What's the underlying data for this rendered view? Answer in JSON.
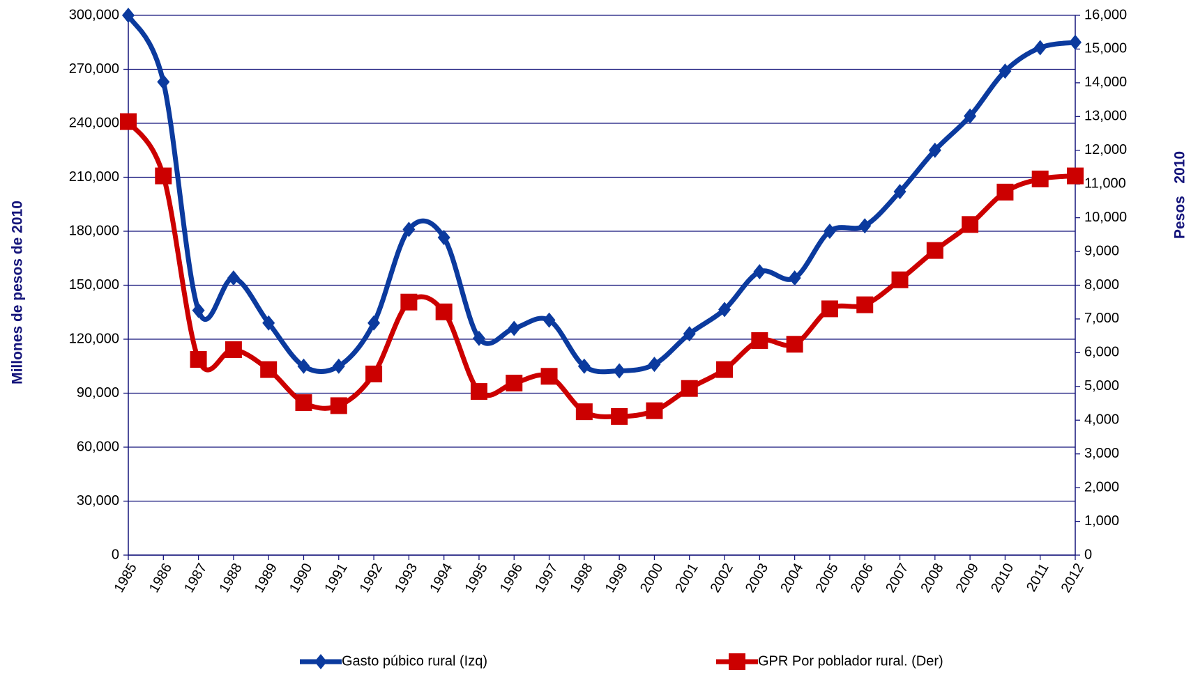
{
  "chart_data": {
    "type": "line",
    "categories": [
      "1985",
      "1986",
      "1987",
      "1988",
      "1989",
      "1990",
      "1991",
      "1992",
      "1993",
      "1994",
      "1995",
      "1996",
      "1997",
      "1998",
      "1999",
      "2000",
      "2001",
      "2002",
      "2003",
      "2004",
      "2005",
      "2006",
      "2007",
      "2008",
      "2009",
      "2010",
      "2011",
      "2012"
    ],
    "y_label": "Millones de pesos de 2010",
    "y2_label": "Pesos   2010",
    "ylim": [
      0,
      300000
    ],
    "yticks": [
      0,
      {
        "value": 30000,
        "label": "30,000"
      },
      {
        "value": 60000,
        "label": "60,000"
      },
      {
        "value": 90000,
        "label": "90,000"
      },
      {
        "value": 120000,
        "label": "120,000"
      },
      {
        "value": 150000,
        "label": "150,000"
      },
      {
        "value": 180000,
        "label": "180,000"
      },
      {
        "value": 210000,
        "label": "210,000"
      },
      {
        "value": 240000,
        "label": "240,000"
      },
      {
        "value": 270000,
        "label": "270,000"
      },
      {
        "value": 300000,
        "label": "300,000"
      }
    ],
    "y2lim": [
      0,
      16000
    ],
    "y2ticks": [
      0,
      {
        "value": 1000,
        "label": "1,000"
      },
      {
        "value": 2000,
        "label": "2,000"
      },
      {
        "value": 3000,
        "label": "3,000"
      },
      {
        "value": 4000,
        "label": "4,000"
      },
      {
        "value": 5000,
        "label": "5,000"
      },
      {
        "value": 6000,
        "label": "6,000"
      },
      {
        "value": 7000,
        "label": "7,000"
      },
      {
        "value": 8000,
        "label": "8,000"
      },
      {
        "value": 9000,
        "label": "9,000"
      },
      {
        "value": 10000,
        "label": "10,000"
      },
      {
        "value": 11000,
        "label": "11,000"
      },
      {
        "value": 12000,
        "label": "12,000"
      },
      {
        "value": 13000,
        "label": "13,000"
      },
      {
        "value": 14000,
        "label": "14,000"
      },
      {
        "value": 15000,
        "label": "15,000"
      },
      {
        "value": 16000,
        "label": "16,000"
      }
    ],
    "grid": true,
    "legend": "bottom",
    "series": [
      {
        "name": "Gasto púbico rural (Izq)",
        "color": "#0b3a9e",
        "marker": "diamond",
        "values": [
          300000,
          263000,
          136000,
          154000,
          129000,
          105000,
          105000,
          129000,
          181000,
          176500,
          120500,
          126000,
          130600,
          105000,
          102400,
          106000,
          123000,
          136500,
          157500,
          154000,
          180000,
          183000,
          202000,
          225000,
          244000,
          269000,
          282000,
          285000
        ]
      },
      {
        "name": "GPR Por poblador rural. (Der)",
        "color": "#cc0000",
        "marker": "square",
        "axis": "y2",
        "values": [
          12850,
          11240,
          5800,
          6090,
          5500,
          4520,
          4430,
          5370,
          7500,
          7210,
          4850,
          5100,
          5300,
          4250,
          4110,
          4280,
          4940,
          5500,
          6360,
          6250,
          7300,
          7420,
          8160,
          9030,
          9800,
          10760,
          11150,
          11240
        ]
      }
    ]
  }
}
